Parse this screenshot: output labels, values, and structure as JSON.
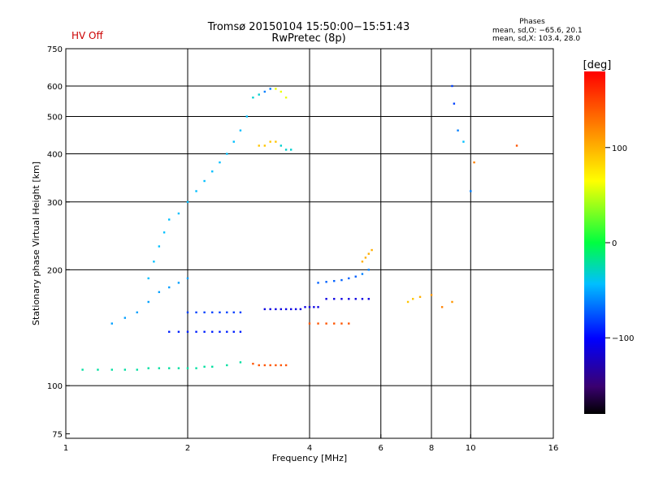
{
  "header": {
    "status": "HV Off",
    "title_line1": "Tromsø 20150104 15:50:00−15:51:43",
    "title_line2": "RwPretec (8p)",
    "phases_label": "Phases",
    "phases_O": "mean, sd,O: −65.6, 20.1",
    "phases_X": "mean, sd,X: 103.4, 28.0"
  },
  "colors": {
    "status": "#cc0000",
    "grid": "#000000"
  },
  "colorbar": {
    "unit_label": "[deg]",
    "range": [
      -180,
      180
    ],
    "ticks": [
      {
        "value": 100,
        "label": "100"
      },
      {
        "value": 0,
        "label": "0"
      },
      {
        "value": -100,
        "label": "−100"
      }
    ]
  },
  "chart_data": {
    "type": "scatter",
    "title": "Tromsø 20150104 15:50:00−15:51:43",
    "subtitle": "RwPretec (8p)",
    "xlabel": "Frequency [MHz]",
    "ylabel": "Stationary phase Virtual Height [km]",
    "x_scale": "log",
    "y_scale": "log",
    "xlim": [
      1,
      16
    ],
    "ylim": [
      73,
      750
    ],
    "x_ticks": [
      {
        "value": 1,
        "label": "1"
      },
      {
        "value": 2,
        "label": "2"
      },
      {
        "value": 4,
        "label": "4"
      },
      {
        "value": 6,
        "label": "6"
      },
      {
        "value": 8,
        "label": "8"
      },
      {
        "value": 10,
        "label": "10"
      },
      {
        "value": 16,
        "label": "16"
      }
    ],
    "x_grid": [
      2,
      4,
      6,
      8,
      10
    ],
    "y_ticks": [
      {
        "value": 75,
        "label": "75"
      },
      {
        "value": 100,
        "label": "100"
      },
      {
        "value": 200,
        "label": "200"
      },
      {
        "value": 300,
        "label": "300"
      },
      {
        "value": 400,
        "label": "400"
      },
      {
        "value": 500,
        "label": "500"
      },
      {
        "value": 600,
        "label": "600"
      },
      {
        "value": 750,
        "label": "750"
      }
    ],
    "y_grid": [
      100,
      200,
      300,
      400,
      500,
      600
    ],
    "color_scale": "phase [deg], rainbow from −180 (black) to +180 (red)",
    "series": [
      {
        "x": [
          1.1,
          1.2,
          1.3,
          1.4,
          1.5,
          1.6,
          1.7,
          1.8,
          1.9,
          2.0,
          2.1,
          2.2,
          2.3,
          2.5,
          2.7
        ],
        "y": [
          110,
          110,
          110,
          110,
          110,
          111,
          111,
          111,
          111,
          111,
          111,
          112,
          112,
          113,
          115
        ],
        "phase": [
          -20,
          -20,
          -20,
          -20,
          -20,
          -20,
          -20,
          -20,
          -20,
          -20,
          -20,
          -20,
          -20,
          -20,
          -20
        ]
      },
      {
        "x": [
          2.9,
          3.0,
          3.1,
          3.2,
          3.3,
          3.4,
          3.5
        ],
        "y": [
          114,
          113,
          113,
          113,
          113,
          113,
          113
        ],
        "phase": [
          140,
          140,
          140,
          140,
          140,
          140,
          140
        ]
      },
      {
        "x": [
          1.6,
          1.65,
          1.7,
          1.75,
          1.8,
          1.9,
          2.0,
          2.1,
          2.2,
          2.3,
          2.4,
          2.5,
          2.6,
          2.7,
          2.8
        ],
        "y": [
          190,
          210,
          230,
          250,
          270,
          280,
          300,
          320,
          340,
          360,
          380,
          400,
          430,
          460,
          500
        ],
        "phase": [
          -40,
          -40,
          -40,
          -40,
          -40,
          -40,
          -40,
          -40,
          -40,
          -40,
          -40,
          -40,
          -40,
          -40,
          -40
        ]
      },
      {
        "x": [
          1.3,
          1.4,
          1.5,
          1.6,
          1.7,
          1.8,
          1.9,
          2.0
        ],
        "y": [
          145,
          150,
          155,
          165,
          175,
          180,
          185,
          190
        ],
        "phase": [
          -50,
          -50,
          -50,
          -50,
          -50,
          -50,
          -50,
          -50
        ]
      },
      {
        "x": [
          1.8,
          1.9,
          2.0,
          2.1,
          2.2,
          2.3,
          2.4,
          2.5,
          2.6,
          2.7
        ],
        "y": [
          138,
          138,
          138,
          138,
          138,
          138,
          138,
          138,
          138,
          138
        ],
        "phase": [
          -90,
          -90,
          -90,
          -90,
          -90,
          -90,
          -90,
          -90,
          -90,
          -90
        ]
      },
      {
        "x": [
          2.0,
          2.1,
          2.2,
          2.3,
          2.4,
          2.5,
          2.6,
          2.7
        ],
        "y": [
          155,
          155,
          155,
          155,
          155,
          155,
          155,
          155
        ],
        "phase": [
          -80,
          -80,
          -80,
          -80,
          -80,
          -80,
          -80,
          -80
        ]
      },
      {
        "x": [
          3.0,
          3.1,
          3.2,
          3.3,
          3.4,
          3.5,
          3.6
        ],
        "y": [
          420,
          420,
          430,
          430,
          420,
          410,
          410
        ],
        "phase": [
          90,
          90,
          90,
          90,
          -30,
          -30,
          -30
        ]
      },
      {
        "x": [
          2.9,
          3.0,
          3.1,
          3.2,
          3.3,
          3.4,
          3.5
        ],
        "y": [
          560,
          570,
          580,
          590,
          590,
          580,
          560
        ],
        "phase": [
          -30,
          -30,
          -60,
          -60,
          60,
          60,
          60
        ]
      },
      {
        "x": [
          3.1,
          3.2,
          3.3,
          3.4,
          3.5,
          3.6,
          3.7,
          3.8,
          3.9,
          4.0,
          4.1,
          4.2
        ],
        "y": [
          158,
          158,
          158,
          158,
          158,
          158,
          158,
          158,
          160,
          160,
          160,
          160
        ],
        "phase": [
          -110,
          -110,
          -110,
          -110,
          -110,
          -110,
          -110,
          -110,
          -110,
          -110,
          -110,
          -110
        ]
      },
      {
        "x": [
          4.2,
          4.4,
          4.6,
          4.8,
          5.0,
          5.2,
          5.4,
          5.6
        ],
        "y": [
          185,
          186,
          187,
          188,
          190,
          192,
          195,
          200
        ],
        "phase": [
          -70,
          -70,
          -70,
          -70,
          -70,
          -70,
          -60,
          -60
        ]
      },
      {
        "x": [
          4.4,
          4.6,
          4.8,
          5.0,
          5.2,
          5.4,
          5.6
        ],
        "y": [
          168,
          168,
          168,
          168,
          168,
          168,
          168
        ],
        "phase": [
          -110,
          -110,
          -110,
          -110,
          -110,
          -110,
          -110
        ]
      },
      {
        "x": [
          4.0,
          4.2,
          4.4,
          4.6,
          4.8,
          5.0
        ],
        "y": [
          145,
          145,
          145,
          145,
          145,
          145
        ],
        "phase": [
          140,
          140,
          140,
          140,
          140,
          140
        ]
      },
      {
        "x": [
          5.4,
          5.5,
          5.6,
          5.7
        ],
        "y": [
          210,
          215,
          220,
          225
        ],
        "phase": [
          100,
          100,
          100,
          100
        ]
      },
      {
        "x": [
          7.0,
          7.2,
          7.5,
          8.0,
          8.5,
          9.0
        ],
        "y": [
          165,
          168,
          170,
          172,
          160,
          165
        ],
        "phase": [
          90,
          90,
          100,
          110,
          120,
          110
        ]
      },
      {
        "x": [
          9.0,
          9.1,
          9.3,
          9.6,
          10.0,
          10.2,
          13.0
        ],
        "y": [
          600,
          540,
          460,
          430,
          320,
          380,
          420
        ],
        "phase": [
          -80,
          -80,
          -60,
          -40,
          -60,
          120,
          140
        ]
      }
    ]
  }
}
